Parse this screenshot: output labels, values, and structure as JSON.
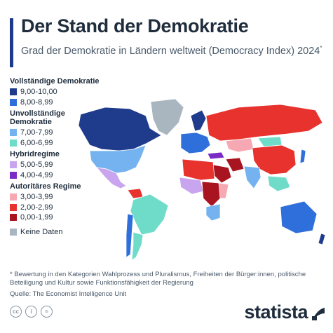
{
  "header": {
    "title": "Der Stand der Demokratie",
    "subtitle": "Grad der Demokratie in Ländern weltweit (Democracy Index) 2024",
    "subtitle_mark": "*"
  },
  "chart_data": {
    "type": "choropleth",
    "title": "Der Stand der Demokratie",
    "legend": [
      {
        "group": "Vollständige Demokratie",
        "classes": [
          {
            "label": "9,00-10,00",
            "color": "#1f3b8c"
          },
          {
            "label": "8,00-8,99",
            "color": "#2f6fdb"
          }
        ]
      },
      {
        "group": "Unvollständige Demokratie",
        "classes": [
          {
            "label": "7,00-7,99",
            "color": "#74b3ef"
          },
          {
            "label": "6,00-6,99",
            "color": "#6fdcc9"
          }
        ]
      },
      {
        "group": "Hybridregime",
        "classes": [
          {
            "label": "5,00-5,99",
            "color": "#c9a5ef"
          },
          {
            "label": "4,00-4,99",
            "color": "#7a2bc5"
          }
        ]
      },
      {
        "group": "Autoritäres Regime",
        "classes": [
          {
            "label": "3,00-3,99",
            "color": "#f6a9b3"
          },
          {
            "label": "2,00-2,99",
            "color": "#e8322e"
          },
          {
            "label": "0,00-1,99",
            "color": "#a8141f"
          }
        ]
      }
    ],
    "no_data": {
      "label": "Keine Daten",
      "color": "#a9b6bf"
    },
    "regions": [
      {
        "region": "Kanada",
        "class": "9,00-10,00"
      },
      {
        "region": "USA",
        "class": "7,00-7,99"
      },
      {
        "region": "Mexiko",
        "class": "5,00-5,99"
      },
      {
        "region": "Grönland",
        "class": "Keine Daten"
      },
      {
        "region": "Brasilien",
        "class": "6,00-6,99"
      },
      {
        "region": "Venezuela",
        "class": "2,00-2,99"
      },
      {
        "region": "Argentinien",
        "class": "6,00-6,99"
      },
      {
        "region": "Chile",
        "class": "8,00-8,99"
      },
      {
        "region": "Russland",
        "class": "2,00-2,99"
      },
      {
        "region": "China",
        "class": "2,00-2,99"
      },
      {
        "region": "Indien",
        "class": "7,00-7,99"
      },
      {
        "region": "Australien",
        "class": "8,00-8,99"
      },
      {
        "region": "Neuseeland",
        "class": "9,00-10,00"
      },
      {
        "region": "Japan",
        "class": "8,00-8,99"
      },
      {
        "region": "Mongolei",
        "class": "6,00-6,99"
      },
      {
        "region": "Kasachstan",
        "class": "3,00-3,99"
      },
      {
        "region": "Saudi-Arabien",
        "class": "0,00-1,99"
      },
      {
        "region": "Iran",
        "class": "0,00-1,99"
      },
      {
        "region": "Türkei",
        "class": "4,00-4,99"
      },
      {
        "region": "Südafrika",
        "class": "7,00-7,99"
      },
      {
        "region": "Skandinavien",
        "class": "9,00-10,00"
      }
    ]
  },
  "footer": {
    "note": "* Bewertung in den Kategorien Wahlprozess und Pluralismus, Freiheiten der Bürger:innen, politische Beteiligung und Kultur sowie Funktionsfähigkeit der Regierung",
    "source": "Quelle: The Economist Intelligence Unit",
    "brand": "statista",
    "license_icons": [
      "cc-icon",
      "by-icon",
      "nd-icon"
    ]
  },
  "colors": {
    "accent": "#1e3a8a",
    "text": "#1f2d3d"
  }
}
